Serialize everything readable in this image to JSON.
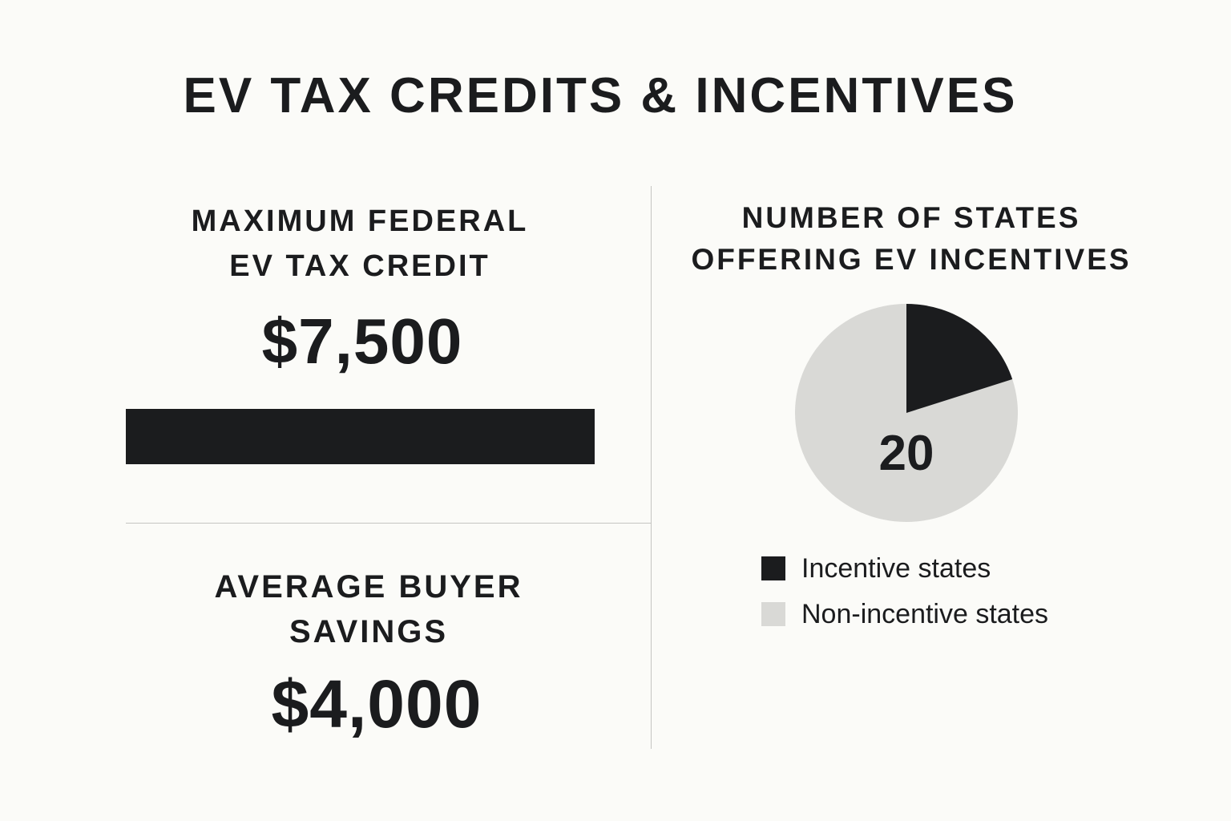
{
  "title": "EV TAX CREDITS & INCENTIVES",
  "federal_credit": {
    "heading_line1": "MAXIMUM FEDERAL",
    "heading_line2": "EV TAX CREDIT",
    "value": "$7,500",
    "bar_fill_fraction": 1.0,
    "bar_color": "#1b1c1e"
  },
  "buyer_savings": {
    "heading_line1": "AVERAGE BUYER",
    "heading_line2": "SAVINGS",
    "value": "$4,000"
  },
  "states": {
    "heading_line1": "NUMBER OF STATES",
    "heading_line2": "OFFERING EV INCENTIVES",
    "center_label": "20"
  },
  "chart_data": {
    "type": "pie",
    "title": "NUMBER OF STATES OFFERING EV INCENTIVES",
    "slices": [
      {
        "label": "Incentive states",
        "value": 20,
        "color": "#1b1c1e"
      },
      {
        "label": "Non-incentive states",
        "value": 80,
        "color": "#d9d9d6"
      }
    ],
    "legend_position": "bottom"
  }
}
